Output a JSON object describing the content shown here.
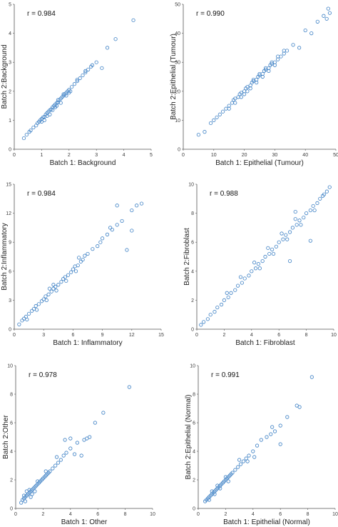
{
  "colors": {
    "marker": "#3b7fc4",
    "axis": "#555555"
  },
  "chart_data": [
    {
      "type": "scatter",
      "annotation": "r = 0.984",
      "xlabel": "Batch 1: Background",
      "ylabel": "Batch 2:Background",
      "xlim": [
        0,
        5
      ],
      "ylim": [
        0,
        5
      ],
      "xticks": [
        "0",
        "1",
        "2",
        "3",
        "4",
        "5"
      ],
      "yticks": [
        "0",
        "1",
        "2",
        "3",
        "4",
        "5"
      ],
      "grid": false,
      "marker": "circle (square for some)",
      "points": [
        [
          0.35,
          0.38
        ],
        [
          0.45,
          0.5
        ],
        [
          0.55,
          0.6
        ],
        [
          0.6,
          0.65
        ],
        [
          0.7,
          0.75
        ],
        [
          0.8,
          0.82
        ],
        [
          0.85,
          0.9
        ],
        [
          0.9,
          0.95
        ],
        [
          1.0,
          1.05
        ],
        [
          1.05,
          1.1
        ],
        [
          1.1,
          1.12
        ],
        [
          1.15,
          1.2
        ],
        [
          1.2,
          1.25
        ],
        [
          1.25,
          1.3
        ],
        [
          1.3,
          1.35
        ],
        [
          1.35,
          1.38
        ],
        [
          1.4,
          1.45
        ],
        [
          1.45,
          1.5
        ],
        [
          1.5,
          1.55
        ],
        [
          1.55,
          1.6
        ],
        [
          1.6,
          1.62
        ],
        [
          1.65,
          1.7
        ],
        [
          1.7,
          1.75
        ],
        [
          1.75,
          1.8
        ],
        [
          1.8,
          1.85
        ],
        [
          1.85,
          1.9
        ],
        [
          1.9,
          1.95
        ],
        [
          1.95,
          2.0
        ],
        [
          2.0,
          2.05
        ],
        [
          2.1,
          2.15
        ],
        [
          2.2,
          2.25
        ],
        [
          2.3,
          2.35
        ],
        [
          2.4,
          2.45
        ],
        [
          2.5,
          2.55
        ],
        [
          2.6,
          2.65
        ],
        [
          2.7,
          2.75
        ],
        [
          2.8,
          2.85
        ],
        [
          1.1,
          1.0
        ],
        [
          1.3,
          1.2
        ],
        [
          1.5,
          1.45
        ],
        [
          1.7,
          1.6
        ],
        [
          1.9,
          1.85
        ],
        [
          2.05,
          2.0
        ],
        [
          1.0,
          0.95
        ],
        [
          1.2,
          1.15
        ],
        [
          0.95,
          1.0
        ],
        [
          1.6,
          1.7
        ],
        [
          1.8,
          1.9
        ],
        [
          2.3,
          2.4
        ],
        [
          2.0,
          1.95
        ],
        [
          1.4,
          1.35
        ],
        [
          1.55,
          1.5
        ],
        [
          2.6,
          2.7
        ],
        [
          3.0,
          3.0
        ],
        [
          3.2,
          2.8
        ],
        [
          2.85,
          2.9
        ],
        [
          3.4,
          3.5
        ],
        [
          3.7,
          3.8
        ],
        [
          4.35,
          4.45
        ]
      ]
    },
    {
      "type": "scatter",
      "annotation": "r = 0.990",
      "xlabel": "Batch 1: Epithelial (Tumour)",
      "ylabel": "Batch 2:Epithelial (Tumour)",
      "xlim": [
        0,
        50
      ],
      "ylim": [
        0,
        50
      ],
      "xticks": [
        "0",
        "10",
        "20",
        "30",
        "40",
        "50"
      ],
      "yticks": [
        "0",
        "10",
        "20",
        "30",
        "40",
        "50"
      ],
      "grid": false,
      "points": [
        [
          5,
          5
        ],
        [
          7,
          6
        ],
        [
          9,
          9
        ],
        [
          10,
          10
        ],
        [
          11,
          11
        ],
        [
          12,
          12
        ],
        [
          13,
          13
        ],
        [
          14,
          14
        ],
        [
          15,
          15
        ],
        [
          16,
          16
        ],
        [
          16.5,
          17
        ],
        [
          17,
          17.5
        ],
        [
          18,
          18
        ],
        [
          18.5,
          19
        ],
        [
          19,
          19.5
        ],
        [
          20,
          20
        ],
        [
          20.5,
          21
        ],
        [
          21,
          21.5
        ],
        [
          22,
          22
        ],
        [
          22.5,
          23
        ],
        [
          23,
          23.5
        ],
        [
          24,
          24
        ],
        [
          24.5,
          25
        ],
        [
          25,
          25.5
        ],
        [
          26,
          26
        ],
        [
          26.5,
          27
        ],
        [
          27,
          27.5
        ],
        [
          28,
          28
        ],
        [
          28.5,
          29
        ],
        [
          29,
          29.5
        ],
        [
          30,
          30
        ],
        [
          31,
          31
        ],
        [
          32,
          32
        ],
        [
          33,
          33
        ],
        [
          34,
          34
        ],
        [
          20,
          19
        ],
        [
          22,
          21
        ],
        [
          24,
          23
        ],
        [
          26,
          25
        ],
        [
          28,
          27
        ],
        [
          23,
          24
        ],
        [
          25,
          26
        ],
        [
          27,
          28
        ],
        [
          29,
          30
        ],
        [
          31,
          32
        ],
        [
          21,
          20
        ],
        [
          30,
          29
        ],
        [
          33,
          34
        ],
        [
          36,
          36
        ],
        [
          38,
          35
        ],
        [
          40,
          41
        ],
        [
          42,
          40
        ],
        [
          44,
          44
        ],
        [
          46,
          46
        ],
        [
          47,
          45
        ],
        [
          48,
          47
        ],
        [
          47.5,
          48.5
        ],
        [
          19,
          18
        ],
        [
          15,
          14
        ],
        [
          17,
          16
        ]
      ]
    },
    {
      "type": "scatter",
      "annotation": "r = 0.984",
      "xlabel": "Batch 1: Inflammatory",
      "ylabel": "Batch 2:Inflammatory",
      "xlim": [
        0,
        15
      ],
      "ylim": [
        0,
        15
      ],
      "xticks": [
        "0",
        "3",
        "6",
        "9",
        "12",
        "15"
      ],
      "yticks": [
        "0",
        "3",
        "6",
        "9",
        "12",
        "15"
      ],
      "grid": false,
      "points": [
        [
          0.5,
          0.5
        ],
        [
          0.8,
          0.9
        ],
        [
          1.0,
          1.1
        ],
        [
          1.2,
          1.3
        ],
        [
          1.5,
          1.6
        ],
        [
          1.8,
          1.9
        ],
        [
          2.0,
          2.1
        ],
        [
          2.2,
          2.4
        ],
        [
          2.5,
          2.6
        ],
        [
          2.8,
          2.9
        ],
        [
          3.0,
          3.1
        ],
        [
          3.2,
          3.4
        ],
        [
          3.5,
          3.6
        ],
        [
          3.8,
          3.9
        ],
        [
          4.0,
          4.2
        ],
        [
          4.2,
          4.4
        ],
        [
          4.5,
          4.6
        ],
        [
          4.8,
          4.9
        ],
        [
          5.0,
          5.2
        ],
        [
          5.2,
          5.4
        ],
        [
          5.5,
          5.6
        ],
        [
          5.8,
          5.9
        ],
        [
          6.0,
          6.2
        ],
        [
          6.2,
          6.5
        ],
        [
          6.5,
          6.6
        ],
        [
          6.8,
          7.0
        ],
        [
          7.0,
          7.2
        ],
        [
          7.5,
          7.8
        ],
        [
          8.0,
          8.3
        ],
        [
          8.5,
          8.6
        ],
        [
          9.0,
          9.4
        ],
        [
          9.5,
          9.8
        ],
        [
          10.0,
          10.3
        ],
        [
          10.5,
          10.8
        ],
        [
          11.0,
          11.2
        ],
        [
          12.0,
          12.3
        ],
        [
          12.5,
          12.8
        ],
        [
          13.0,
          13.0
        ],
        [
          3.3,
          3.0
        ],
        [
          4.3,
          4.0
        ],
        [
          2.3,
          2.0
        ],
        [
          5.3,
          5.0
        ],
        [
          6.3,
          6.0
        ],
        [
          1.3,
          1.0
        ],
        [
          4.0,
          4.6
        ],
        [
          3.6,
          4.2
        ],
        [
          7.2,
          7.6
        ],
        [
          8.8,
          9.0
        ],
        [
          10.5,
          12.8
        ],
        [
          11.5,
          8.2
        ],
        [
          12.0,
          10.2
        ],
        [
          9.8,
          10.5
        ],
        [
          6.6,
          7.4
        ]
      ]
    },
    {
      "type": "scatter",
      "annotation": "r = 0.988",
      "xlabel": "Batch 1: Fibroblast",
      "ylabel": "Batch 2:Fibroblast",
      "xlim": [
        0,
        10
      ],
      "ylim": [
        0,
        10
      ],
      "xticks": [
        "0",
        "2",
        "4",
        "6",
        "8",
        "10"
      ],
      "yticks": [
        "0",
        "2",
        "4",
        "6",
        "8",
        "10"
      ],
      "grid": false,
      "points": [
        [
          0.3,
          0.3
        ],
        [
          0.5,
          0.5
        ],
        [
          0.8,
          0.7
        ],
        [
          1.0,
          1.0
        ],
        [
          1.3,
          1.2
        ],
        [
          1.5,
          1.5
        ],
        [
          1.8,
          1.7
        ],
        [
          2.0,
          2.0
        ],
        [
          2.3,
          2.2
        ],
        [
          2.5,
          2.5
        ],
        [
          2.8,
          2.7
        ],
        [
          3.0,
          3.0
        ],
        [
          3.3,
          3.2
        ],
        [
          3.5,
          3.5
        ],
        [
          3.8,
          3.7
        ],
        [
          4.0,
          4.0
        ],
        [
          4.3,
          4.2
        ],
        [
          4.5,
          4.5
        ],
        [
          4.8,
          4.7
        ],
        [
          5.0,
          5.0
        ],
        [
          5.3,
          5.2
        ],
        [
          5.5,
          5.5
        ],
        [
          5.8,
          5.7
        ],
        [
          6.0,
          6.0
        ],
        [
          6.3,
          6.2
        ],
        [
          6.5,
          6.5
        ],
        [
          6.8,
          6.7
        ],
        [
          7.0,
          7.0
        ],
        [
          7.3,
          7.2
        ],
        [
          7.5,
          7.5
        ],
        [
          7.8,
          7.7
        ],
        [
          8.0,
          8.0
        ],
        [
          8.3,
          8.2
        ],
        [
          8.5,
          8.5
        ],
        [
          8.8,
          8.7
        ],
        [
          9.0,
          9.0
        ],
        [
          9.3,
          9.3
        ],
        [
          9.5,
          9.5
        ],
        [
          9.7,
          9.8
        ],
        [
          2.2,
          2.5
        ],
        [
          3.2,
          3.6
        ],
        [
          4.2,
          4.6
        ],
        [
          5.2,
          5.6
        ],
        [
          6.2,
          6.6
        ],
        [
          7.2,
          7.6
        ],
        [
          4.6,
          4.2
        ],
        [
          5.6,
          5.2
        ],
        [
          6.6,
          6.2
        ],
        [
          7.6,
          7.2
        ],
        [
          8.6,
          8.2
        ],
        [
          6.8,
          4.7
        ],
        [
          8.3,
          6.1
        ],
        [
          7.2,
          8.1
        ],
        [
          9.2,
          9.2
        ]
      ]
    },
    {
      "type": "scatter",
      "annotation": "r = 0.978",
      "xlabel": "Batch 1: Other",
      "ylabel": "Batch 2:Other",
      "xlim": [
        0,
        10
      ],
      "ylim": [
        0,
        10
      ],
      "xticks": [
        "0",
        "2",
        "4",
        "6",
        "8",
        "10"
      ],
      "yticks": [
        "0",
        "2",
        "4",
        "6",
        "8",
        "10"
      ],
      "grid": false,
      "points": [
        [
          0.4,
          0.4
        ],
        [
          0.5,
          0.6
        ],
        [
          0.6,
          0.7
        ],
        [
          0.7,
          0.8
        ],
        [
          0.8,
          0.9
        ],
        [
          0.9,
          1.0
        ],
        [
          1.0,
          1.1
        ],
        [
          1.1,
          1.2
        ],
        [
          1.2,
          1.3
        ],
        [
          1.3,
          1.4
        ],
        [
          1.4,
          1.5
        ],
        [
          1.5,
          1.6
        ],
        [
          1.6,
          1.7
        ],
        [
          1.7,
          1.8
        ],
        [
          1.8,
          1.9
        ],
        [
          1.9,
          2.0
        ],
        [
          2.0,
          2.1
        ],
        [
          2.1,
          2.2
        ],
        [
          2.2,
          2.3
        ],
        [
          2.3,
          2.4
        ],
        [
          2.4,
          2.5
        ],
        [
          2.5,
          2.6
        ],
        [
          2.7,
          2.8
        ],
        [
          2.9,
          3.0
        ],
        [
          3.1,
          3.2
        ],
        [
          3.3,
          3.4
        ],
        [
          3.5,
          3.7
        ],
        [
          3.7,
          3.9
        ],
        [
          4.0,
          4.2
        ],
        [
          0.6,
          0.9
        ],
        [
          0.8,
          1.2
        ],
        [
          1.0,
          1.3
        ],
        [
          1.2,
          1.0
        ],
        [
          1.4,
          1.2
        ],
        [
          1.6,
          1.9
        ],
        [
          0.7,
          0.5
        ],
        [
          1.1,
          0.8
        ],
        [
          2.2,
          2.6
        ],
        [
          3.0,
          3.6
        ],
        [
          3.6,
          4.8
        ],
        [
          4.0,
          4.9
        ],
        [
          4.5,
          4.6
        ],
        [
          4.3,
          3.8
        ],
        [
          5.0,
          4.8
        ],
        [
          5.2,
          4.9
        ],
        [
          5.4,
          5.0
        ],
        [
          5.8,
          6.0
        ],
        [
          6.4,
          6.7
        ],
        [
          4.8,
          3.7
        ],
        [
          8.3,
          8.5
        ]
      ]
    },
    {
      "type": "scatter",
      "annotation": "r = 0.991",
      "xlabel": "Batch 1: Epithelial (Normal)",
      "ylabel": "Batch 2:Epithelial (Normal)",
      "xlim": [
        0,
        10
      ],
      "ylim": [
        0,
        10
      ],
      "xticks": [
        "0",
        "2",
        "4",
        "6",
        "8",
        "10"
      ],
      "yticks": [
        "0",
        "2",
        "4",
        "6",
        "8",
        "10"
      ],
      "grid": false,
      "points": [
        [
          0.5,
          0.5
        ],
        [
          0.6,
          0.6
        ],
        [
          0.7,
          0.7
        ],
        [
          0.8,
          0.8
        ],
        [
          0.9,
          0.9
        ],
        [
          1.0,
          1.0
        ],
        [
          1.1,
          1.1
        ],
        [
          1.2,
          1.2
        ],
        [
          1.3,
          1.3
        ],
        [
          1.4,
          1.4
        ],
        [
          1.5,
          1.5
        ],
        [
          1.6,
          1.6
        ],
        [
          1.7,
          1.7
        ],
        [
          1.8,
          1.8
        ],
        [
          1.9,
          1.9
        ],
        [
          2.0,
          2.0
        ],
        [
          2.1,
          2.1
        ],
        [
          2.2,
          2.2
        ],
        [
          2.3,
          2.3
        ],
        [
          2.4,
          2.4
        ],
        [
          2.5,
          2.5
        ],
        [
          2.7,
          2.7
        ],
        [
          2.9,
          2.9
        ],
        [
          3.1,
          3.1
        ],
        [
          3.3,
          3.3
        ],
        [
          3.5,
          3.5
        ],
        [
          3.7,
          3.7
        ],
        [
          4.0,
          4.0
        ],
        [
          4.3,
          4.4
        ],
        [
          4.6,
          4.8
        ],
        [
          5.0,
          5.0
        ],
        [
          5.3,
          5.2
        ],
        [
          5.6,
          5.4
        ],
        [
          6.0,
          5.8
        ],
        [
          6.5,
          6.4
        ],
        [
          7.2,
          7.2
        ],
        [
          7.4,
          7.1
        ],
        [
          8.3,
          9.2
        ],
        [
          0.8,
          0.6
        ],
        [
          1.0,
          1.2
        ],
        [
          1.2,
          1.0
        ],
        [
          1.4,
          1.6
        ],
        [
          1.6,
          1.4
        ],
        [
          2.0,
          2.2
        ],
        [
          2.2,
          1.9
        ],
        [
          3.0,
          3.4
        ],
        [
          3.6,
          3.3
        ],
        [
          4.1,
          3.6
        ],
        [
          6.0,
          4.5
        ],
        [
          5.4,
          5.7
        ]
      ]
    }
  ]
}
